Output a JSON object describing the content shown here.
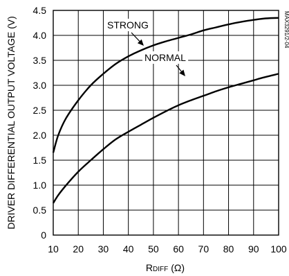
{
  "chart_data": {
    "type": "line",
    "xlabel_main": "R",
    "xlabel_sub": "DIFF",
    "xlabel_unit": "(Ω)",
    "ylabel": "DRIVER DIFFERENTIAL OUTPUT VOLTAGE (V)",
    "figure_id": "MAX3291/2-04",
    "xlim": [
      10,
      100
    ],
    "ylim": [
      0,
      4.5
    ],
    "x_ticks": [
      10,
      20,
      30,
      40,
      50,
      60,
      70,
      80,
      90,
      100
    ],
    "y_ticks": [
      "0",
      "0.5",
      "1.0",
      "1.5",
      "2.0",
      "2.5",
      "3.0",
      "3.5",
      "4.0",
      "4.5"
    ],
    "grid": true,
    "series": [
      {
        "name": "STRONG",
        "x": [
          10,
          12,
          15,
          20,
          25,
          30,
          35,
          40,
          45,
          50,
          55,
          60,
          65,
          70,
          75,
          80,
          85,
          90,
          95,
          100
        ],
        "y": [
          1.65,
          2.0,
          2.33,
          2.7,
          3.0,
          3.23,
          3.43,
          3.58,
          3.7,
          3.8,
          3.88,
          3.95,
          4.02,
          4.1,
          4.16,
          4.22,
          4.27,
          4.31,
          4.34,
          4.35
        ]
      },
      {
        "name": "NORMAL",
        "x": [
          10,
          12,
          15,
          20,
          25,
          30,
          35,
          40,
          45,
          50,
          55,
          60,
          65,
          70,
          75,
          80,
          85,
          90,
          95,
          100
        ],
        "y": [
          0.64,
          0.8,
          0.99,
          1.27,
          1.5,
          1.72,
          1.92,
          2.07,
          2.21,
          2.35,
          2.48,
          2.6,
          2.7,
          2.79,
          2.88,
          2.96,
          3.03,
          3.1,
          3.17,
          3.23
        ]
      }
    ],
    "annotations": [
      {
        "text": "STRONG",
        "series": 0,
        "x": 40,
        "y": 4.1
      },
      {
        "text": "NORMAL",
        "series": 1,
        "x": 62,
        "y": 3.2
      }
    ]
  }
}
